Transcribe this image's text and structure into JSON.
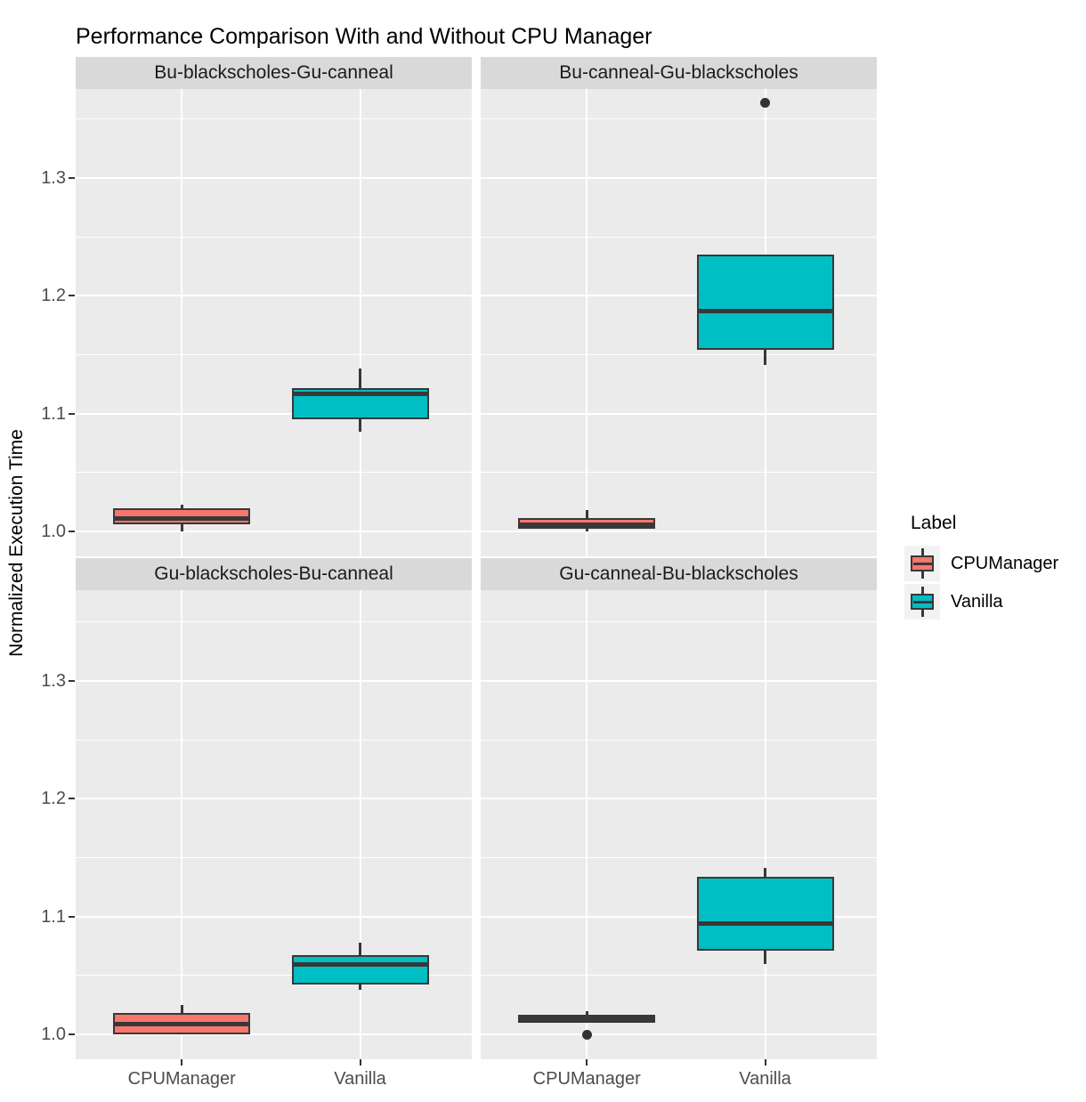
{
  "title": "Performance Comparison With and Without CPU Manager",
  "y_axis": {
    "label": "Normalized Execution Time",
    "ticks": [
      "1.0",
      "1.1",
      "1.2",
      "1.3"
    ],
    "tick_values": [
      1.0,
      1.1,
      1.2,
      1.3
    ],
    "minor_gridline_values": [
      1.05,
      1.15,
      1.25,
      1.35
    ]
  },
  "x_axis": {
    "categories": [
      "CPUManager",
      "Vanilla"
    ]
  },
  "legend": {
    "title": "Label",
    "items": [
      {
        "label": "CPUManager",
        "color": "#F8766D"
      },
      {
        "label": "Vanilla",
        "color": "#00BFC4"
      }
    ]
  },
  "colors": {
    "panel_background": "#EBEBEB",
    "strip_background": "#D9D9D9",
    "gridline": "#FFFFFF",
    "box_border": "#383838",
    "axis_text": "#4d4d4d",
    "cpumanager_fill": "#F8766D",
    "vanilla_fill": "#00BFC4"
  },
  "chart_data": {
    "type": "boxplot",
    "layout": "2x2-facets",
    "y_range_displayed": [
      0.98,
      1.38
    ],
    "groups": [
      "CPUManager",
      "Vanilla"
    ],
    "facets": [
      {
        "title": "Bu-blackscholes-Gu-canneal",
        "boxes": [
          {
            "group": "CPUManager",
            "whisker_low": 1.0,
            "q1": 1.006,
            "median": 1.011,
            "q3": 1.02,
            "whisker_high": 1.023,
            "outliers": []
          },
          {
            "group": "Vanilla",
            "whisker_low": 1.085,
            "q1": 1.095,
            "median": 1.117,
            "q3": 1.122,
            "whisker_high": 1.138,
            "outliers": []
          }
        ]
      },
      {
        "title": "Bu-canneal-Gu-blackscholes",
        "boxes": [
          {
            "group": "CPUManager",
            "whisker_low": 1.0,
            "q1": 1.002,
            "median": 1.006,
            "q3": 1.011,
            "whisker_high": 1.018,
            "outliers": []
          },
          {
            "group": "Vanilla",
            "whisker_low": 1.141,
            "q1": 1.154,
            "median": 1.187,
            "q3": 1.235,
            "whisker_high": 1.235,
            "outliers": [
              1.364
            ]
          }
        ]
      },
      {
        "title": "Gu-blackscholes-Bu-canneal",
        "boxes": [
          {
            "group": "CPUManager",
            "whisker_low": 1.0,
            "q1": 1.0,
            "median": 1.009,
            "q3": 1.018,
            "whisker_high": 1.025,
            "outliers": []
          },
          {
            "group": "Vanilla",
            "whisker_low": 1.038,
            "q1": 1.042,
            "median": 1.059,
            "q3": 1.067,
            "whisker_high": 1.078,
            "outliers": []
          }
        ]
      },
      {
        "title": "Gu-canneal-Bu-blackscholes",
        "boxes": [
          {
            "group": "CPUManager",
            "whisker_low": 1.01,
            "q1": 1.01,
            "median": 1.013,
            "q3": 1.017,
            "whisker_high": 1.02,
            "outliers": [
              1.0
            ]
          },
          {
            "group": "Vanilla",
            "whisker_low": 1.06,
            "q1": 1.071,
            "median": 1.094,
            "q3": 1.134,
            "whisker_high": 1.141,
            "outliers": []
          }
        ]
      }
    ]
  }
}
